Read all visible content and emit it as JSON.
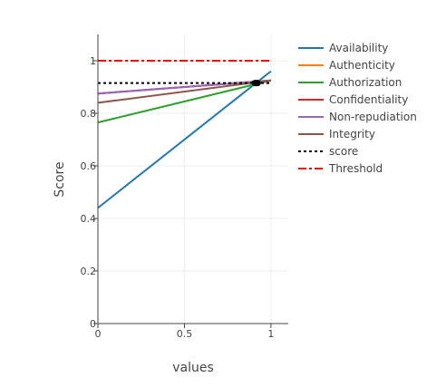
{
  "chart_data": {
    "type": "line",
    "xlabel": "values",
    "ylabel": "Score",
    "xlim": [
      0,
      1.1
    ],
    "ylim": [
      0,
      1.1
    ],
    "xticks": [
      {
        "v": 0,
        "label": "0"
      },
      {
        "v": 0.5,
        "label": "0.5"
      },
      {
        "v": 1,
        "label": "1"
      }
    ],
    "yticks": [
      {
        "v": 0,
        "label": "0"
      },
      {
        "v": 0.2,
        "label": "0.2"
      },
      {
        "v": 0.4,
        "label": "0.4"
      },
      {
        "v": 0.6,
        "label": "0.6"
      },
      {
        "v": 0.8,
        "label": "0.8"
      },
      {
        "v": 1,
        "label": "1"
      }
    ],
    "grid": true,
    "legend_position": "right",
    "series": [
      {
        "name": "Availability",
        "color": "#1f77b4",
        "dash": "solid",
        "x": [
          0,
          1
        ],
        "y": [
          0.44,
          0.96
        ]
      },
      {
        "name": "Authenticity",
        "color": "#ff7f0e",
        "dash": "solid",
        "x": [
          0,
          1
        ],
        "y": [
          0.875,
          0.925
        ]
      },
      {
        "name": "Authorization",
        "color": "#2ca02c",
        "dash": "solid",
        "x": [
          0,
          1
        ],
        "y": [
          0.765,
          0.925
        ]
      },
      {
        "name": "Confidentiality",
        "color": "#d62728",
        "dash": "solid",
        "x": [
          0,
          1
        ],
        "y": [
          0.875,
          0.925
        ]
      },
      {
        "name": "Non-repudiation",
        "color": "#9467bd",
        "dash": "solid",
        "x": [
          0,
          1
        ],
        "y": [
          0.875,
          0.925
        ]
      },
      {
        "name": "Integrity",
        "color": "#8c564b",
        "dash": "solid",
        "x": [
          0,
          1
        ],
        "y": [
          0.84,
          0.925
        ]
      },
      {
        "name": "score",
        "color": "#000000",
        "dash": "dot",
        "x": [
          0,
          1
        ],
        "y": [
          0.915,
          0.915
        ]
      },
      {
        "name": "Threshold",
        "color": "#ff0000",
        "dash": "dashdot",
        "x": [
          0,
          1
        ],
        "y": [
          1.0,
          1.0
        ]
      }
    ],
    "marker": {
      "x": 0.915,
      "y": 0.915,
      "color": "#000000"
    }
  }
}
